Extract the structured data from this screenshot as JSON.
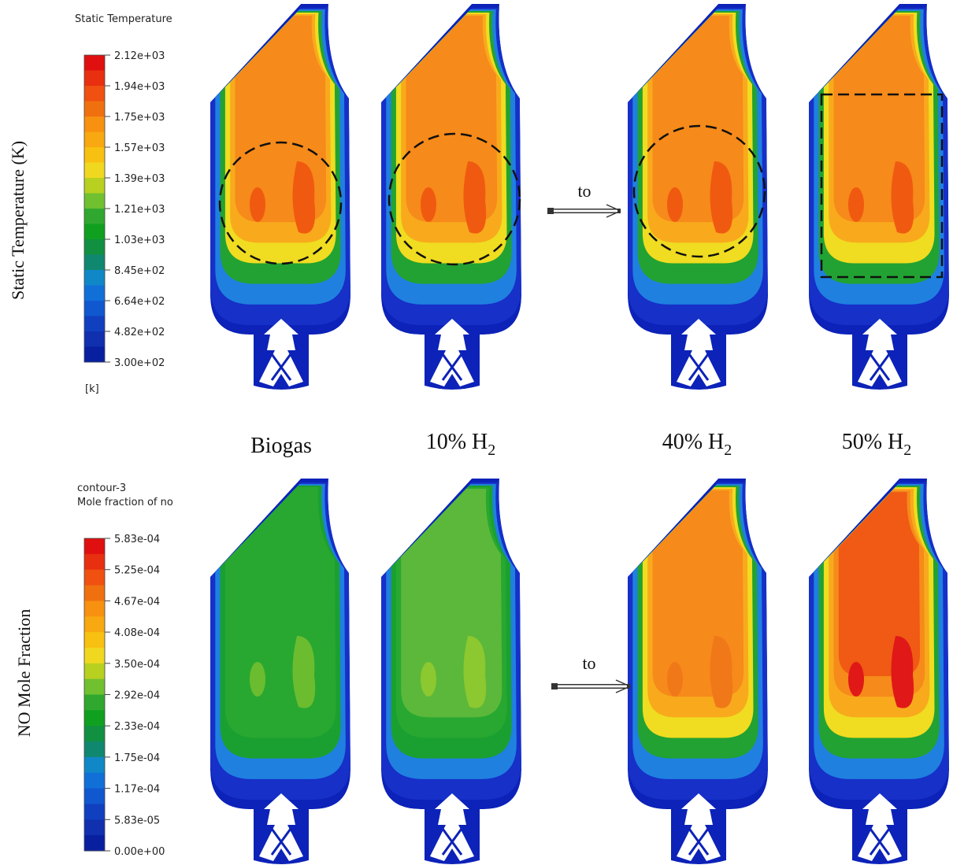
{
  "top_row": {
    "row_label": "Static Temperature (K)",
    "legend": {
      "title": "Static Temperature",
      "unit": "[k]",
      "ticks": [
        "2.12e+03",
        "1.94e+03",
        "1.75e+03",
        "1.57e+03",
        "1.39e+03",
        "1.21e+03",
        "1.03e+03",
        "8.45e+02",
        "6.64e+02",
        "4.82e+02",
        "3.00e+02"
      ]
    },
    "arrow_label": "to"
  },
  "columns": [
    {
      "text": "Biogas"
    },
    {
      "text": "10% H",
      "sub": "2"
    },
    {
      "text": "40% H",
      "sub": "2"
    },
    {
      "text": "50% H",
      "sub": "2"
    }
  ],
  "bottom_row": {
    "row_label": "NO Mole Fraction",
    "legend": {
      "title_lines": [
        "contour-3",
        "Mole fraction of no"
      ],
      "ticks": [
        "5.83e-04",
        "5.25e-04",
        "4.67e-04",
        "4.08e-04",
        "3.50e-04",
        "2.92e-04",
        "2.33e-04",
        "1.75e-04",
        "1.17e-04",
        "5.83e-05",
        "0.00e+00"
      ]
    },
    "arrow_label": "to"
  }
}
